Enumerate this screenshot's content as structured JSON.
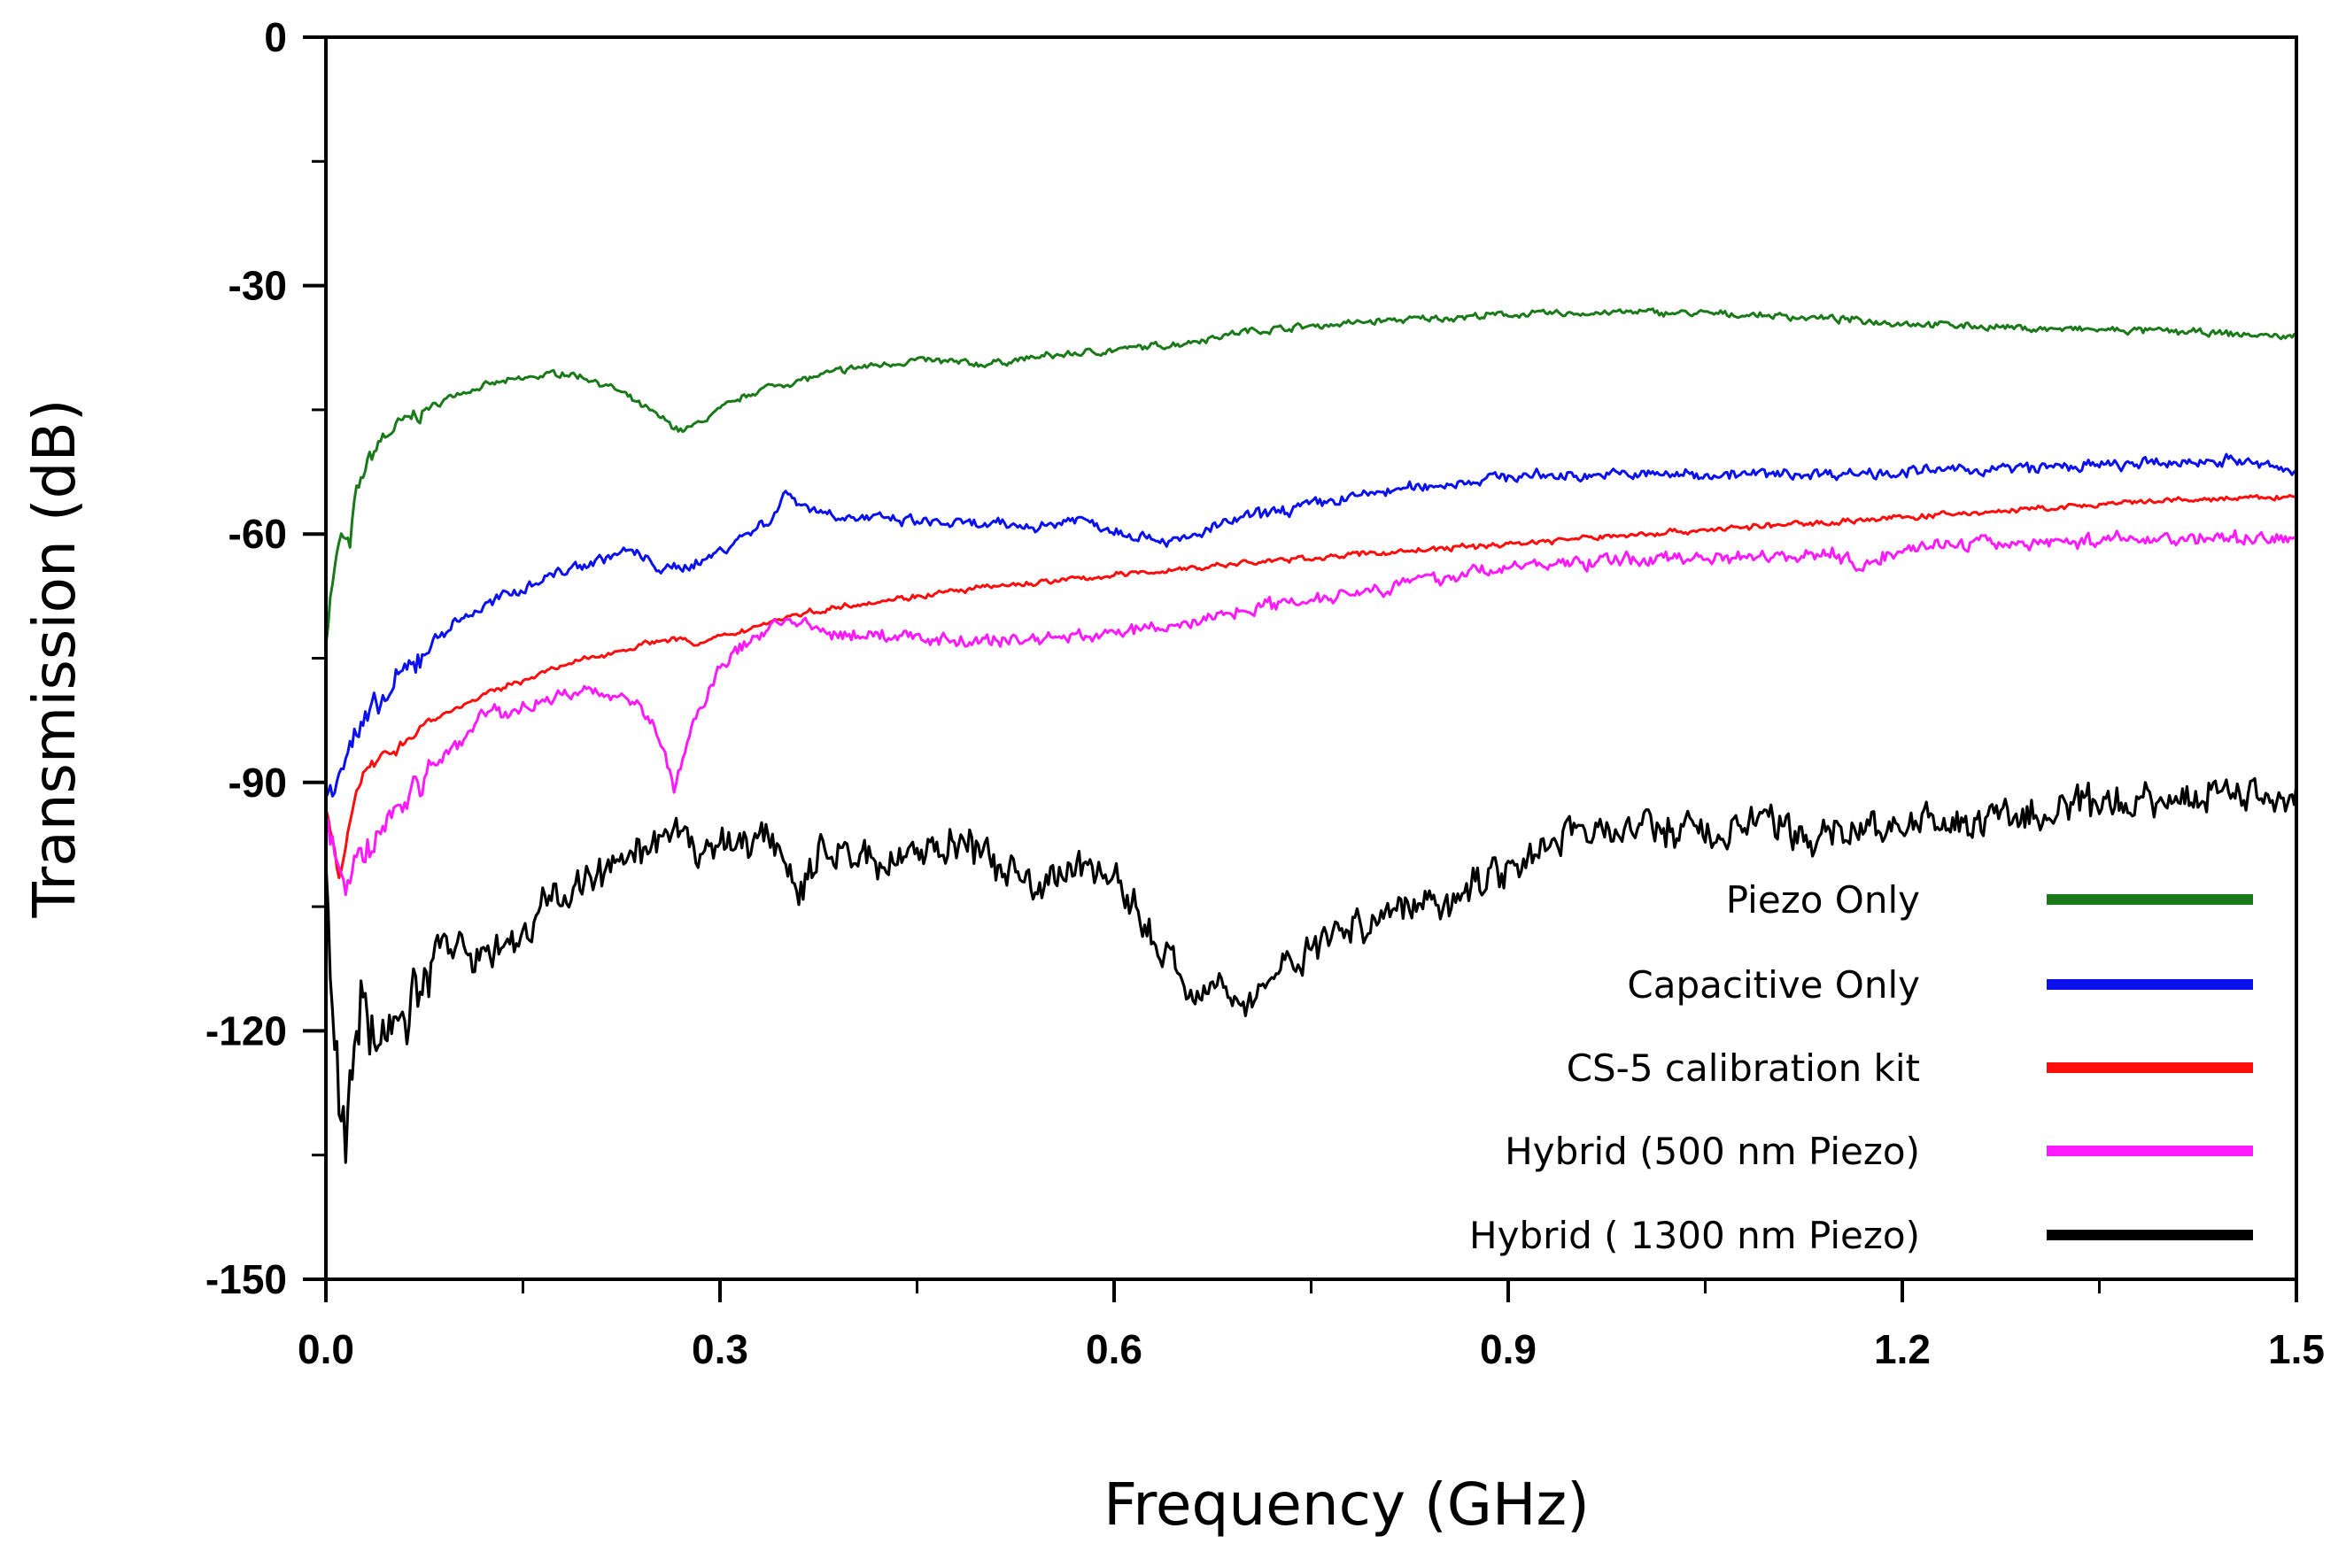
{
  "chart_data": {
    "type": "line",
    "title": "",
    "xlabel": "Frequency (GHz)",
    "ylabel": "Transmission (dB)",
    "xlim": [
      0.0,
      1.5
    ],
    "ylim": [
      -150,
      0
    ],
    "x_major_ticks": [
      0.0,
      0.3,
      0.6,
      0.9,
      1.2,
      1.5
    ],
    "x_tick_labels": [
      "0.0",
      "0.3",
      "0.6",
      "0.9",
      "1.2",
      "1.5"
    ],
    "x_minor_ticks": [
      0.15,
      0.45,
      0.75,
      1.05,
      1.35
    ],
    "y_major_ticks": [
      0,
      -30,
      -60,
      -90,
      -120,
      -150
    ],
    "y_tick_labels": [
      "0",
      "-30",
      "-60",
      "-90",
      "-120",
      "-150"
    ],
    "y_minor_ticks": [
      -15,
      -45,
      -75,
      -105,
      -135
    ],
    "grid": false,
    "legend_position": "bottom-right",
    "series": [
      {
        "name": "Piezo Only",
        "color": "#1a7a1a",
        "noise": 0.3,
        "points": [
          [
            0.0,
            -73
          ],
          [
            0.003,
            -68
          ],
          [
            0.008,
            -63
          ],
          [
            0.012,
            -60
          ],
          [
            0.018,
            -62
          ],
          [
            0.022,
            -56
          ],
          [
            0.03,
            -52
          ],
          [
            0.04,
            -49
          ],
          [
            0.05,
            -47.5
          ],
          [
            0.07,
            -45.5
          ],
          [
            0.1,
            -43
          ],
          [
            0.13,
            -41.8
          ],
          [
            0.16,
            -41
          ],
          [
            0.18,
            -40.5
          ],
          [
            0.2,
            -41.2
          ],
          [
            0.22,
            -42.5
          ],
          [
            0.24,
            -44.5
          ],
          [
            0.26,
            -46.5
          ],
          [
            0.27,
            -47.5
          ],
          [
            0.28,
            -47
          ],
          [
            0.3,
            -45
          ],
          [
            0.33,
            -42.5
          ],
          [
            0.36,
            -41.5
          ],
          [
            0.4,
            -40
          ],
          [
            0.45,
            -39
          ],
          [
            0.5,
            -39.5
          ],
          [
            0.55,
            -38.5
          ],
          [
            0.6,
            -37.8
          ],
          [
            0.65,
            -37
          ],
          [
            0.7,
            -35.5
          ],
          [
            0.8,
            -34.3
          ],
          [
            0.9,
            -33.5
          ],
          [
            1.0,
            -33.2
          ],
          [
            1.1,
            -33.6
          ],
          [
            1.2,
            -34.5
          ],
          [
            1.3,
            -35.2
          ],
          [
            1.4,
            -35.5
          ],
          [
            1.5,
            -36.2
          ]
        ]
      },
      {
        "name": "Capacitive Only",
        "color": "#0a10ee",
        "noise": 0.5,
        "points": [
          [
            0.0,
            -92
          ],
          [
            0.01,
            -88
          ],
          [
            0.02,
            -85
          ],
          [
            0.04,
            -81
          ],
          [
            0.06,
            -77
          ],
          [
            0.08,
            -73
          ],
          [
            0.1,
            -70.5
          ],
          [
            0.13,
            -68
          ],
          [
            0.17,
            -65
          ],
          [
            0.2,
            -63.5
          ],
          [
            0.23,
            -62
          ],
          [
            0.26,
            -64.5
          ],
          [
            0.29,
            -63
          ],
          [
            0.32,
            -60
          ],
          [
            0.34,
            -58
          ],
          [
            0.35,
            -55
          ],
          [
            0.37,
            -57
          ],
          [
            0.4,
            -58
          ],
          [
            0.45,
            -58.5
          ],
          [
            0.5,
            -59
          ],
          [
            0.55,
            -59
          ],
          [
            0.57,
            -58
          ],
          [
            0.6,
            -59.5
          ],
          [
            0.65,
            -61
          ],
          [
            0.68,
            -59
          ],
          [
            0.7,
            -58
          ],
          [
            0.8,
            -55
          ],
          [
            0.9,
            -53
          ],
          [
            1.0,
            -52.8
          ],
          [
            1.1,
            -52.8
          ],
          [
            1.2,
            -52.5
          ],
          [
            1.3,
            -52
          ],
          [
            1.4,
            -51.5
          ],
          [
            1.45,
            -51
          ],
          [
            1.5,
            -52.5
          ]
        ]
      },
      {
        "name": "CS-5 calibration kit",
        "color": "#ff0d0d",
        "noise": 0.25,
        "points": [
          [
            0.0,
            -93
          ],
          [
            0.005,
            -97
          ],
          [
            0.01,
            -101
          ],
          [
            0.015,
            -97
          ],
          [
            0.02,
            -93
          ],
          [
            0.03,
            -89
          ],
          [
            0.05,
            -86
          ],
          [
            0.08,
            -82.5
          ],
          [
            0.12,
            -79.5
          ],
          [
            0.16,
            -77
          ],
          [
            0.2,
            -75
          ],
          [
            0.25,
            -73
          ],
          [
            0.27,
            -72.5
          ],
          [
            0.28,
            -73.5
          ],
          [
            0.3,
            -72.5
          ],
          [
            0.35,
            -70
          ],
          [
            0.4,
            -68.5
          ],
          [
            0.5,
            -66.5
          ],
          [
            0.6,
            -65
          ],
          [
            0.7,
            -63.5
          ],
          [
            0.8,
            -62.3
          ],
          [
            0.9,
            -61.2
          ],
          [
            1.0,
            -60
          ],
          [
            1.1,
            -59
          ],
          [
            1.2,
            -58
          ],
          [
            1.3,
            -57
          ],
          [
            1.4,
            -56
          ],
          [
            1.5,
            -55.5
          ]
        ]
      },
      {
        "name": "Hybrid (500 nm Piezo)",
        "color": "#ff19ff",
        "noise": 0.6,
        "points": [
          [
            0.0,
            -93
          ],
          [
            0.005,
            -97
          ],
          [
            0.01,
            -101
          ],
          [
            0.015,
            -104
          ],
          [
            0.02,
            -101
          ],
          [
            0.03,
            -98
          ],
          [
            0.05,
            -94
          ],
          [
            0.07,
            -90
          ],
          [
            0.09,
            -87
          ],
          [
            0.11,
            -84
          ],
          [
            0.12,
            -81
          ],
          [
            0.14,
            -82
          ],
          [
            0.16,
            -80
          ],
          [
            0.2,
            -79
          ],
          [
            0.23,
            -79.5
          ],
          [
            0.25,
            -83
          ],
          [
            0.26,
            -88
          ],
          [
            0.265,
            -91
          ],
          [
            0.27,
            -88
          ],
          [
            0.28,
            -83
          ],
          [
            0.3,
            -76
          ],
          [
            0.33,
            -72
          ],
          [
            0.35,
            -70
          ],
          [
            0.36,
            -71
          ],
          [
            0.38,
            -72
          ],
          [
            0.45,
            -72.5
          ],
          [
            0.5,
            -73
          ],
          [
            0.6,
            -72
          ],
          [
            0.65,
            -71
          ],
          [
            0.7,
            -69
          ],
          [
            0.8,
            -66.5
          ],
          [
            0.9,
            -64
          ],
          [
            1.0,
            -63
          ],
          [
            1.1,
            -62.5
          ],
          [
            1.15,
            -62.5
          ],
          [
            1.17,
            -64
          ],
          [
            1.2,
            -61.5
          ],
          [
            1.3,
            -61
          ],
          [
            1.4,
            -60.5
          ],
          [
            1.5,
            -60.5
          ]
        ]
      },
      {
        "name": "Hybrid ( 1300 nm Piezo)",
        "color": "#000000",
        "noise": 1.6,
        "points": [
          [
            0.0,
            -104
          ],
          [
            0.005,
            -118
          ],
          [
            0.01,
            -126
          ],
          [
            0.015,
            -134
          ],
          [
            0.02,
            -124
          ],
          [
            0.03,
            -116
          ],
          [
            0.04,
            -122
          ],
          [
            0.05,
            -117
          ],
          [
            0.06,
            -124
          ],
          [
            0.07,
            -112
          ],
          [
            0.08,
            -108
          ],
          [
            0.1,
            -111
          ],
          [
            0.12,
            -110
          ],
          [
            0.15,
            -109
          ],
          [
            0.17,
            -104
          ],
          [
            0.2,
            -102
          ],
          [
            0.23,
            -100
          ],
          [
            0.26,
            -97
          ],
          [
            0.3,
            -98
          ],
          [
            0.34,
            -96.5
          ],
          [
            0.36,
            -103
          ],
          [
            0.38,
            -98
          ],
          [
            0.42,
            -99.5
          ],
          [
            0.48,
            -97
          ],
          [
            0.53,
            -102
          ],
          [
            0.54,
            -104
          ],
          [
            0.57,
            -99
          ],
          [
            0.6,
            -102
          ],
          [
            0.64,
            -111
          ],
          [
            0.66,
            -116
          ],
          [
            0.68,
            -112
          ],
          [
            0.7,
            -118
          ],
          [
            0.72,
            -113
          ],
          [
            0.75,
            -110
          ],
          [
            0.8,
            -106
          ],
          [
            0.85,
            -104
          ],
          [
            0.9,
            -100
          ],
          [
            0.95,
            -96
          ],
          [
            1.0,
            -95.5
          ],
          [
            1.05,
            -96
          ],
          [
            1.1,
            -95
          ],
          [
            1.13,
            -97
          ],
          [
            1.15,
            -95.5
          ],
          [
            1.2,
            -95.5
          ],
          [
            1.3,
            -94
          ],
          [
            1.4,
            -92
          ],
          [
            1.45,
            -91
          ],
          [
            1.5,
            -91.5
          ]
        ]
      }
    ]
  }
}
